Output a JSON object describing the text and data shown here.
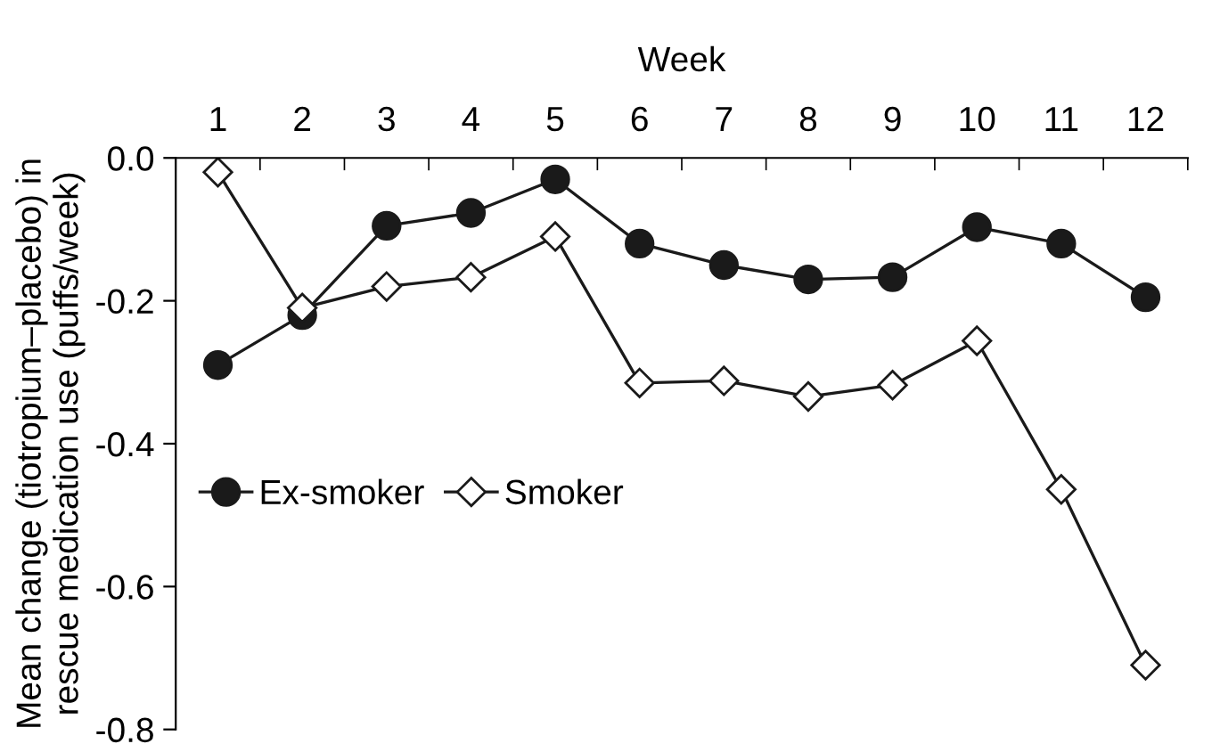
{
  "chart_data": {
    "type": "line",
    "xlabel": "Week",
    "ylabel": "Mean change (tiotropium–placebo) in\nrescue medication use (puffs/week)",
    "categories": [
      "1",
      "2",
      "3",
      "4",
      "5",
      "6",
      "7",
      "8",
      "9",
      "10",
      "11",
      "12"
    ],
    "series": [
      {
        "name": "Ex-smoker",
        "color": "#1a1a1a",
        "marker": "circle",
        "values": [
          -0.29,
          -0.22,
          -0.095,
          -0.077,
          -0.03,
          -0.12,
          -0.15,
          -0.17,
          -0.167,
          -0.097,
          -0.12,
          -0.195
        ]
      },
      {
        "name": "Smoker",
        "color": "#1a1a1a",
        "marker": "diamond",
        "values": [
          -0.02,
          -0.21,
          -0.18,
          -0.167,
          -0.11,
          -0.315,
          -0.312,
          -0.334,
          -0.318,
          -0.256,
          -0.464,
          -0.71
        ]
      }
    ],
    "ylim": [
      -0.8,
      0.0
    ],
    "yticks": [
      {
        "value": -0.8,
        "label": "-0.8"
      },
      {
        "value": -0.6,
        "label": "-0.6"
      },
      {
        "value": -0.4,
        "label": "-0.4"
      },
      {
        "value": -0.2,
        "label": "-0.2"
      },
      {
        "value": 0.0,
        "label": "0.0"
      }
    ],
    "grid": false,
    "legend": "left",
    "line_style": "solid"
  }
}
